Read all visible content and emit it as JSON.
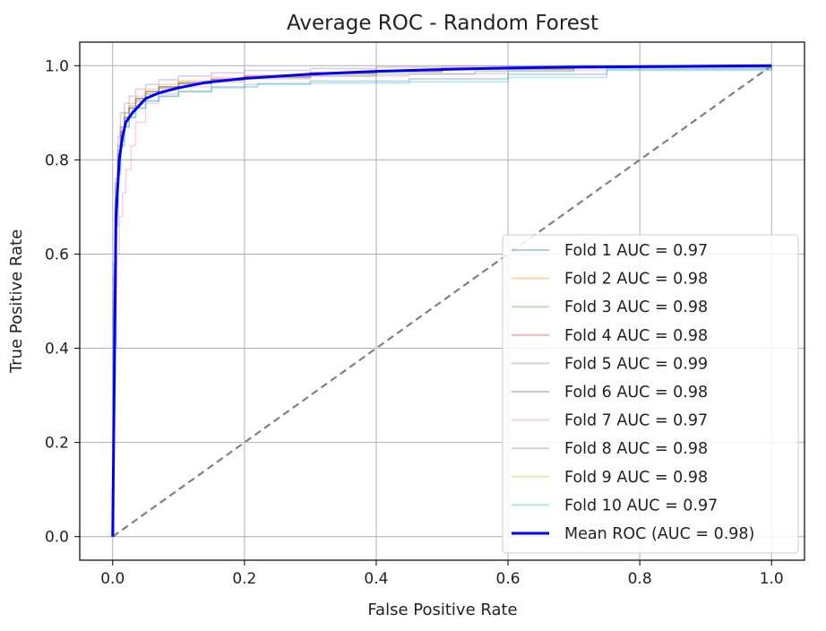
{
  "chart_data": {
    "type": "line",
    "title": "Average ROC - Random Forest",
    "xlabel": "False Positive Rate",
    "ylabel": "True Positive Rate",
    "xlim": [
      -0.05,
      1.05
    ],
    "ylim": [
      -0.05,
      1.05
    ],
    "xticks": [
      0.0,
      0.2,
      0.4,
      0.6,
      0.8,
      1.0
    ],
    "yticks": [
      0.0,
      0.2,
      0.4,
      0.6,
      0.8,
      1.0
    ],
    "xtick_labels": [
      "0.0",
      "0.2",
      "0.4",
      "0.6",
      "0.8",
      "1.0"
    ],
    "ytick_labels": [
      "0.0",
      "0.2",
      "0.4",
      "0.6",
      "0.8",
      "1.0"
    ],
    "grid": true,
    "legend_position": "lower-right",
    "chance_line": {
      "x": [
        0,
        1
      ],
      "y": [
        0,
        1
      ],
      "color": "#808080",
      "style": "dashed"
    },
    "series": [
      {
        "name": "Fold 1 AUC = 0.97",
        "color": "#1f77b4",
        "x": [
          0,
          0.001,
          0.004,
          0.008,
          0.012,
          0.018,
          0.025,
          0.035,
          0.05,
          0.07,
          0.1,
          0.15,
          0.22,
          0.3,
          0.45,
          0.6,
          0.75,
          1.0
        ],
        "y": [
          0,
          0.46,
          0.66,
          0.77,
          0.83,
          0.87,
          0.89,
          0.91,
          0.925,
          0.935,
          0.945,
          0.955,
          0.962,
          0.967,
          0.972,
          0.982,
          0.992,
          1.0
        ]
      },
      {
        "name": "Fold 2 AUC = 0.98",
        "color": "#ff7f0e",
        "x": [
          0,
          0.001,
          0.004,
          0.008,
          0.012,
          0.018,
          0.025,
          0.035,
          0.05,
          0.07,
          0.1,
          0.15,
          0.2,
          0.3,
          0.4,
          0.5,
          0.7,
          1.0
        ],
        "y": [
          0,
          0.52,
          0.72,
          0.82,
          0.87,
          0.9,
          0.92,
          0.935,
          0.95,
          0.96,
          0.968,
          0.975,
          0.98,
          0.986,
          0.99,
          0.995,
          0.998,
          1.0
        ]
      },
      {
        "name": "Fold 3 AUC = 0.98",
        "color": "#2ca02c",
        "x": [
          0,
          0.001,
          0.004,
          0.008,
          0.012,
          0.018,
          0.025,
          0.035,
          0.05,
          0.07,
          0.1,
          0.15,
          0.2,
          0.3,
          0.4,
          0.55,
          0.7,
          1.0
        ],
        "y": [
          0,
          0.58,
          0.75,
          0.83,
          0.87,
          0.9,
          0.915,
          0.93,
          0.945,
          0.955,
          0.962,
          0.97,
          0.975,
          0.978,
          0.982,
          0.988,
          0.995,
          1.0
        ]
      },
      {
        "name": "Fold 4 AUC = 0.98",
        "color": "#d62728",
        "x": [
          0,
          0.001,
          0.004,
          0.008,
          0.012,
          0.018,
          0.025,
          0.035,
          0.05,
          0.07,
          0.1,
          0.15,
          0.2,
          0.3,
          0.4,
          0.5,
          0.7,
          1.0
        ],
        "y": [
          0,
          0.5,
          0.7,
          0.8,
          0.86,
          0.89,
          0.91,
          0.93,
          0.945,
          0.955,
          0.965,
          0.972,
          0.978,
          0.985,
          0.99,
          0.995,
          0.998,
          1.0
        ]
      },
      {
        "name": "Fold 5 AUC = 0.99",
        "color": "#9467bd",
        "x": [
          0,
          0.001,
          0.004,
          0.008,
          0.012,
          0.018,
          0.025,
          0.035,
          0.05,
          0.07,
          0.1,
          0.15,
          0.2,
          0.3,
          0.4,
          0.5,
          0.7,
          1.0
        ],
        "y": [
          0,
          0.55,
          0.76,
          0.85,
          0.9,
          0.92,
          0.935,
          0.95,
          0.96,
          0.97,
          0.978,
          0.985,
          0.99,
          0.994,
          0.997,
          0.999,
          1.0,
          1.0
        ]
      },
      {
        "name": "Fold 6 AUC = 0.98",
        "color": "#8c564b",
        "x": [
          0,
          0.001,
          0.004,
          0.008,
          0.012,
          0.018,
          0.025,
          0.035,
          0.05,
          0.07,
          0.1,
          0.15,
          0.2,
          0.3,
          0.4,
          0.5,
          0.7,
          1.0
        ],
        "y": [
          0,
          0.5,
          0.7,
          0.81,
          0.86,
          0.89,
          0.91,
          0.925,
          0.94,
          0.952,
          0.962,
          0.97,
          0.976,
          0.983,
          0.988,
          0.993,
          0.998,
          1.0
        ]
      },
      {
        "name": "Fold 7 AUC = 0.97",
        "color": "#e377c2",
        "x": [
          0,
          0.002,
          0.006,
          0.01,
          0.015,
          0.02,
          0.028,
          0.035,
          0.05,
          0.07,
          0.1,
          0.15,
          0.2,
          0.3,
          0.45,
          0.6,
          0.75,
          1.0
        ],
        "y": [
          0,
          0.4,
          0.6,
          0.68,
          0.73,
          0.78,
          0.83,
          0.88,
          0.92,
          0.94,
          0.955,
          0.965,
          0.972,
          0.978,
          0.983,
          0.99,
          0.996,
          1.0
        ]
      },
      {
        "name": "Fold 8 AUC = 0.98",
        "color": "#7f7f7f",
        "x": [
          0,
          0.001,
          0.004,
          0.008,
          0.012,
          0.018,
          0.025,
          0.035,
          0.05,
          0.07,
          0.1,
          0.15,
          0.2,
          0.3,
          0.4,
          0.5,
          0.7,
          1.0
        ],
        "y": [
          0,
          0.52,
          0.72,
          0.81,
          0.86,
          0.89,
          0.91,
          0.93,
          0.945,
          0.955,
          0.963,
          0.97,
          0.976,
          0.982,
          0.987,
          0.992,
          0.997,
          1.0
        ]
      },
      {
        "name": "Fold 9 AUC = 0.98",
        "color": "#bcbd22",
        "x": [
          0,
          0.001,
          0.004,
          0.008,
          0.012,
          0.018,
          0.025,
          0.035,
          0.05,
          0.07,
          0.1,
          0.15,
          0.2,
          0.3,
          0.4,
          0.5,
          0.7,
          1.0
        ],
        "y": [
          0,
          0.5,
          0.7,
          0.8,
          0.85,
          0.88,
          0.905,
          0.925,
          0.94,
          0.95,
          0.96,
          0.968,
          0.975,
          0.982,
          0.987,
          0.992,
          0.997,
          1.0
        ]
      },
      {
        "name": "Fold 10 AUC = 0.97",
        "color": "#17becf",
        "x": [
          0,
          0.001,
          0.004,
          0.008,
          0.012,
          0.018,
          0.025,
          0.035,
          0.05,
          0.07,
          0.1,
          0.15,
          0.2,
          0.3,
          0.45,
          0.6,
          0.75,
          1.0
        ],
        "y": [
          0,
          0.48,
          0.68,
          0.78,
          0.84,
          0.87,
          0.89,
          0.91,
          0.925,
          0.935,
          0.945,
          0.953,
          0.96,
          0.963,
          0.966,
          0.975,
          0.99,
          1.0
        ]
      }
    ],
    "mean_series": {
      "name": "Mean ROC (AUC = 0.98)",
      "color": "#0000ff",
      "x": [
        0,
        0.005,
        0.01,
        0.015,
        0.02,
        0.03,
        0.04,
        0.05,
        0.07,
        0.1,
        0.14,
        0.2,
        0.3,
        0.4,
        0.5,
        0.6,
        0.7,
        0.8,
        0.9,
        1.0
      ],
      "y": [
        0,
        0.68,
        0.8,
        0.85,
        0.88,
        0.9,
        0.915,
        0.93,
        0.942,
        0.953,
        0.964,
        0.973,
        0.982,
        0.988,
        0.992,
        0.995,
        0.997,
        0.998,
        0.999,
        1.0
      ]
    }
  }
}
